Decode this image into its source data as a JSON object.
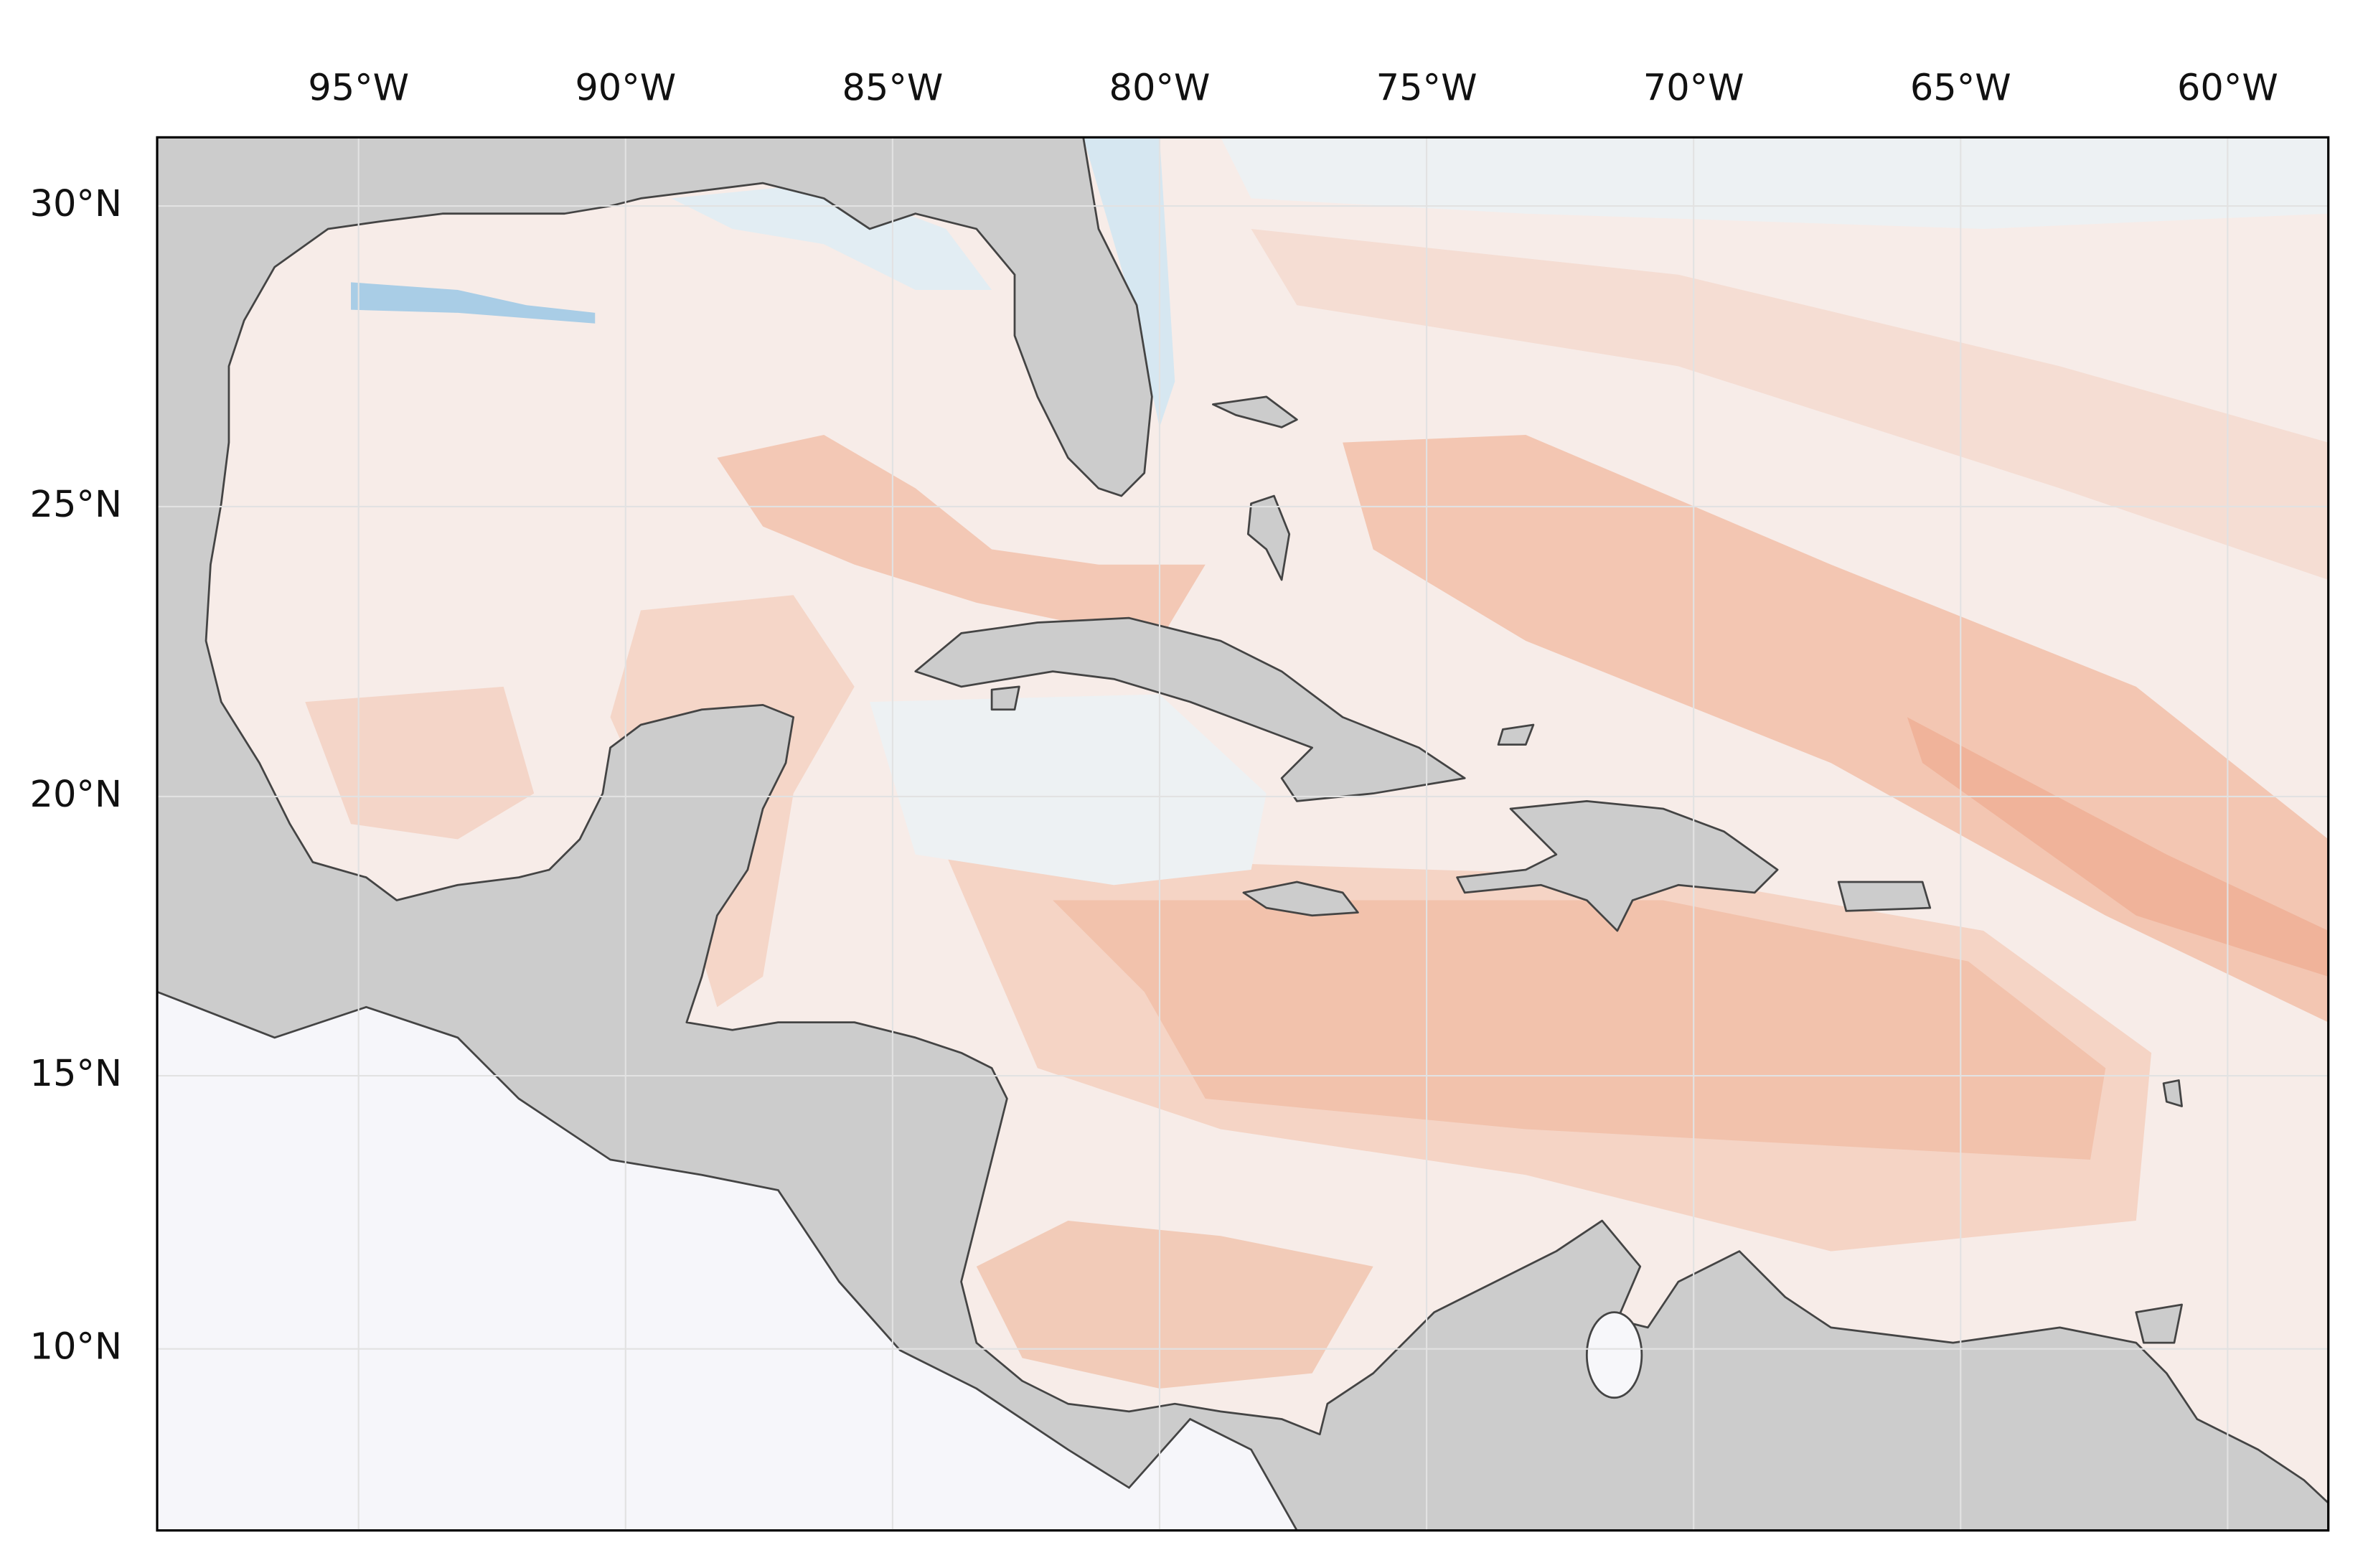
{
  "map": {
    "lon_labels": [
      "95°W",
      "90°W",
      "85°W",
      "80°W",
      "75°W",
      "70°W",
      "65°W",
      "60°W"
    ],
    "lat_labels": [
      "30°N",
      "25°N",
      "20°N",
      "15°N",
      "10°N"
    ]
  }
}
